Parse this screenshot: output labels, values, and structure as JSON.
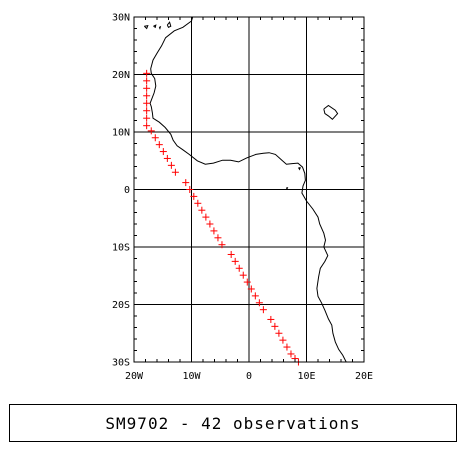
{
  "chart_data": {
    "type": "scatter",
    "title": "SM9702 - 42 observations",
    "xlim": [
      -20,
      20
    ],
    "ylim": [
      -30,
      30
    ],
    "grid": true,
    "x_ticks": [
      {
        "value": -20,
        "label": "20W"
      },
      {
        "value": -10,
        "label": "10W"
      },
      {
        "value": 0,
        "label": "0"
      },
      {
        "value": 10,
        "label": "10E"
      },
      {
        "value": 20,
        "label": "20E"
      }
    ],
    "y_ticks": [
      {
        "value": 30,
        "label": "30N"
      },
      {
        "value": 20,
        "label": "20N"
      },
      {
        "value": 10,
        "label": "10N"
      },
      {
        "value": 0,
        "label": "0"
      },
      {
        "value": -10,
        "label": "10S"
      },
      {
        "value": -20,
        "label": "20S"
      },
      {
        "value": -30,
        "label": "30S"
      }
    ],
    "marker": {
      "symbol": "plus",
      "color": "#ff0000"
    },
    "coast_color": "#000000",
    "points": [
      {
        "lon": -17.8,
        "lat": 20.2
      },
      {
        "lon": -17.8,
        "lat": 18.9
      },
      {
        "lon": -17.8,
        "lat": 17.6
      },
      {
        "lon": -17.8,
        "lat": 16.3
      },
      {
        "lon": -17.8,
        "lat": 15.0
      },
      {
        "lon": -17.8,
        "lat": 13.7
      },
      {
        "lon": -17.8,
        "lat": 12.4
      },
      {
        "lon": -17.8,
        "lat": 11.1
      },
      {
        "lon": -17.0,
        "lat": 10.2
      },
      {
        "lon": -16.3,
        "lat": 9.0
      },
      {
        "lon": -15.6,
        "lat": 7.8
      },
      {
        "lon": -14.9,
        "lat": 6.6
      },
      {
        "lon": -14.2,
        "lat": 5.4
      },
      {
        "lon": -13.5,
        "lat": 4.2
      },
      {
        "lon": -12.8,
        "lat": 3.0
      },
      {
        "lon": -11.0,
        "lat": 1.2
      },
      {
        "lon": -10.3,
        "lat": 0.0
      },
      {
        "lon": -9.6,
        "lat": -1.2
      },
      {
        "lon": -8.9,
        "lat": -2.4
      },
      {
        "lon": -8.2,
        "lat": -3.6
      },
      {
        "lon": -7.5,
        "lat": -4.8
      },
      {
        "lon": -6.8,
        "lat": -6.0
      },
      {
        "lon": -6.1,
        "lat": -7.2
      },
      {
        "lon": -5.4,
        "lat": -8.4
      },
      {
        "lon": -4.7,
        "lat": -9.6
      },
      {
        "lon": -3.1,
        "lat": -11.3
      },
      {
        "lon": -2.4,
        "lat": -12.5
      },
      {
        "lon": -1.7,
        "lat": -13.7
      },
      {
        "lon": -1.0,
        "lat": -14.9
      },
      {
        "lon": -0.3,
        "lat": -16.1
      },
      {
        "lon": 0.4,
        "lat": -17.3
      },
      {
        "lon": 1.1,
        "lat": -18.5
      },
      {
        "lon": 1.8,
        "lat": -19.7
      },
      {
        "lon": 2.5,
        "lat": -20.9
      },
      {
        "lon": 3.8,
        "lat": -22.6
      },
      {
        "lon": 4.5,
        "lat": -23.8
      },
      {
        "lon": 5.2,
        "lat": -25.0
      },
      {
        "lon": 5.9,
        "lat": -26.2
      },
      {
        "lon": 6.6,
        "lat": -27.4
      },
      {
        "lon": 7.3,
        "lat": -28.6
      },
      {
        "lon": 8.0,
        "lat": -29.4
      },
      {
        "lon": 8.6,
        "lat": -30.0
      }
    ],
    "coastline": [
      [
        -9.8,
        30.0
      ],
      [
        -10.0,
        29.3
      ],
      [
        -11.5,
        28.2
      ],
      [
        -13.0,
        27.6
      ],
      [
        -14.5,
        26.4
      ],
      [
        -15.2,
        25.0
      ],
      [
        -16.0,
        23.7
      ],
      [
        -16.7,
        22.5
      ],
      [
        -17.1,
        21.0
      ],
      [
        -17.0,
        20.2
      ],
      [
        -16.4,
        19.3
      ],
      [
        -16.2,
        18.0
      ],
      [
        -16.5,
        16.8
      ],
      [
        -17.2,
        15.0
      ],
      [
        -17.0,
        14.4
      ],
      [
        -16.8,
        13.3
      ],
      [
        -16.7,
        12.4
      ],
      [
        -15.6,
        11.7
      ],
      [
        -14.6,
        10.8
      ],
      [
        -13.6,
        9.6
      ],
      [
        -13.2,
        8.6
      ],
      [
        -12.5,
        7.6
      ],
      [
        -11.5,
        6.9
      ],
      [
        -10.4,
        6.1
      ],
      [
        -9.0,
        5.0
      ],
      [
        -7.6,
        4.4
      ],
      [
        -6.2,
        4.6
      ],
      [
        -4.6,
        5.1
      ],
      [
        -3.2,
        5.1
      ],
      [
        -1.8,
        4.8
      ],
      [
        -0.4,
        5.5
      ],
      [
        1.2,
        6.1
      ],
      [
        2.5,
        6.3
      ],
      [
        3.5,
        6.4
      ],
      [
        4.6,
        6.1
      ],
      [
        5.6,
        5.2
      ],
      [
        6.5,
        4.4
      ],
      [
        7.5,
        4.5
      ],
      [
        8.5,
        4.6
      ],
      [
        9.3,
        3.9
      ],
      [
        9.7,
        2.8
      ],
      [
        9.8,
        1.6
      ],
      [
        9.4,
        0.6
      ],
      [
        9.2,
        -0.6
      ],
      [
        10.0,
        -2.0
      ],
      [
        11.1,
        -3.4
      ],
      [
        12.0,
        -4.8
      ],
      [
        12.3,
        -6.0
      ],
      [
        13.0,
        -7.6
      ],
      [
        13.3,
        -8.8
      ],
      [
        13.0,
        -10.0
      ],
      [
        13.7,
        -11.5
      ],
      [
        13.2,
        -12.5
      ],
      [
        12.4,
        -13.7
      ],
      [
        12.1,
        -15.2
      ],
      [
        11.8,
        -17.2
      ],
      [
        12.0,
        -18.6
      ],
      [
        12.6,
        -19.7
      ],
      [
        13.2,
        -21.0
      ],
      [
        13.8,
        -22.5
      ],
      [
        14.4,
        -23.6
      ],
      [
        14.6,
        -25.0
      ],
      [
        15.0,
        -26.5
      ],
      [
        15.6,
        -27.8
      ],
      [
        16.3,
        -28.8
      ],
      [
        16.9,
        -30.0
      ]
    ],
    "islands": [
      [
        [
          -18.2,
          28.4
        ],
        [
          -17.6,
          28.5
        ],
        [
          -17.8,
          28.0
        ],
        [
          -18.2,
          28.4
        ]
      ],
      [
        [
          -16.6,
          28.4
        ],
        [
          -16.2,
          28.6
        ],
        [
          -16.3,
          28.2
        ],
        [
          -16.6,
          28.4
        ]
      ],
      [
        [
          -15.6,
          28.2
        ],
        [
          -15.4,
          28.3
        ],
        [
          -15.5,
          28.0
        ],
        [
          -15.6,
          28.2
        ]
      ],
      [
        [
          -14.2,
          28.6
        ],
        [
          -13.8,
          29.1
        ],
        [
          -13.6,
          28.4
        ],
        [
          -14.0,
          28.2
        ],
        [
          -14.2,
          28.6
        ]
      ],
      [
        [
          13.0,
          14.0
        ],
        [
          13.8,
          14.6
        ],
        [
          15.0,
          13.8
        ],
        [
          15.4,
          13.2
        ],
        [
          14.5,
          12.2
        ],
        [
          13.8,
          12.8
        ],
        [
          13.2,
          13.2
        ],
        [
          13.0,
          14.0
        ]
      ],
      [
        [
          8.6,
          3.8
        ],
        [
          8.9,
          3.8
        ],
        [
          8.8,
          3.5
        ],
        [
          8.6,
          3.8
        ]
      ],
      [
        [
          6.5,
          0.3
        ],
        [
          6.7,
          0.3
        ],
        [
          6.6,
          0.1
        ],
        [
          6.5,
          0.3
        ]
      ]
    ]
  }
}
